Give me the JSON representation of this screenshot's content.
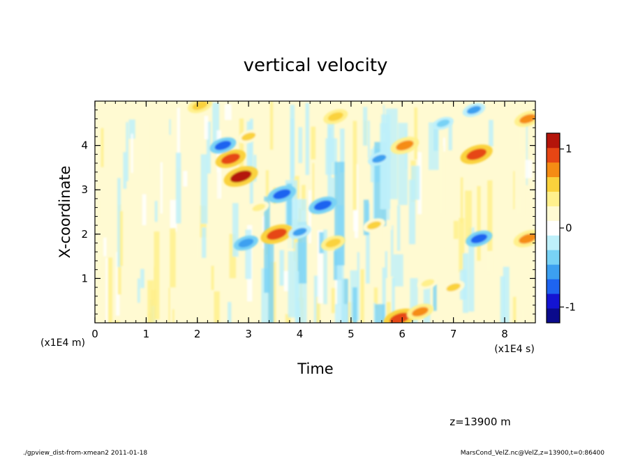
{
  "chart_data": {
    "type": "heatmap",
    "title": "vertical velocity",
    "xlabel": "Time",
    "ylabel": "X-coordinate",
    "x_unit": "(x1E4 s)",
    "y_unit": "(x1E4 m)",
    "x_ticks": [
      "0",
      "1",
      "2",
      "3",
      "4",
      "5",
      "6",
      "7",
      "8"
    ],
    "y_ticks": [
      "1",
      "2",
      "3",
      "4"
    ],
    "xlim": [
      0,
      8.6
    ],
    "ylim": [
      0,
      5
    ],
    "colorbar": {
      "ticks": [
        "1",
        "0",
        "-1"
      ],
      "tick_values": [
        1,
        0,
        -1
      ],
      "range": [
        -1.2,
        1.2
      ],
      "levels": [
        "#0a0a8c",
        "#1414d2",
        "#1e64f0",
        "#3ca0f0",
        "#78d2f5",
        "#bef0fa",
        "#ffffff",
        "#fffad2",
        "#fff08c",
        "#fad23c",
        "#f58c14",
        "#e64614",
        "#b4140a"
      ]
    },
    "features": [
      {
        "x": 2.85,
        "y": 3.3,
        "value": 1.1
      },
      {
        "x": 2.65,
        "y": 3.7,
        "value": 0.9
      },
      {
        "x": 3.55,
        "y": 2.0,
        "value": 1.0
      },
      {
        "x": 4.65,
        "y": 1.8,
        "value": 0.6
      },
      {
        "x": 5.95,
        "y": 0.1,
        "value": 1.0
      },
      {
        "x": 6.35,
        "y": 0.25,
        "value": 0.7
      },
      {
        "x": 7.45,
        "y": 3.8,
        "value": 1.0
      },
      {
        "x": 8.45,
        "y": 1.9,
        "value": 0.8
      },
      {
        "x": 8.45,
        "y": 4.6,
        "value": 0.7
      },
      {
        "x": 6.05,
        "y": 4.0,
        "value": 0.8
      },
      {
        "x": 2.05,
        "y": 4.9,
        "value": 0.6
      },
      {
        "x": 4.7,
        "y": 4.65,
        "value": 0.6
      },
      {
        "x": 5.45,
        "y": 2.2,
        "value": 0.5
      },
      {
        "x": 6.5,
        "y": 0.9,
        "value": 0.4
      },
      {
        "x": 7.0,
        "y": 0.8,
        "value": 0.5
      },
      {
        "x": 3.2,
        "y": 2.6,
        "value": 0.4
      },
      {
        "x": 4.45,
        "y": 2.65,
        "value": -0.8
      },
      {
        "x": 3.65,
        "y": 2.9,
        "value": -0.8
      },
      {
        "x": 2.5,
        "y": 4.0,
        "value": -0.7
      },
      {
        "x": 2.95,
        "y": 1.8,
        "value": -0.6
      },
      {
        "x": 7.5,
        "y": 1.9,
        "value": -0.7
      },
      {
        "x": 4.0,
        "y": 2.05,
        "value": -0.5
      },
      {
        "x": 5.55,
        "y": 3.7,
        "value": -0.5
      },
      {
        "x": 6.8,
        "y": 4.5,
        "value": -0.4
      },
      {
        "x": 7.4,
        "y": 4.8,
        "value": -0.5
      },
      {
        "x": 3.0,
        "y": 4.2,
        "value": 0.5
      }
    ]
  },
  "annotations": {
    "level": "z=13900 m",
    "footer_left": "./gpview_dist-from-xmean2  2011-01-18",
    "footer_right": "MarsCond_VelZ.nc@VelZ,z=13900,t=0:86400"
  }
}
